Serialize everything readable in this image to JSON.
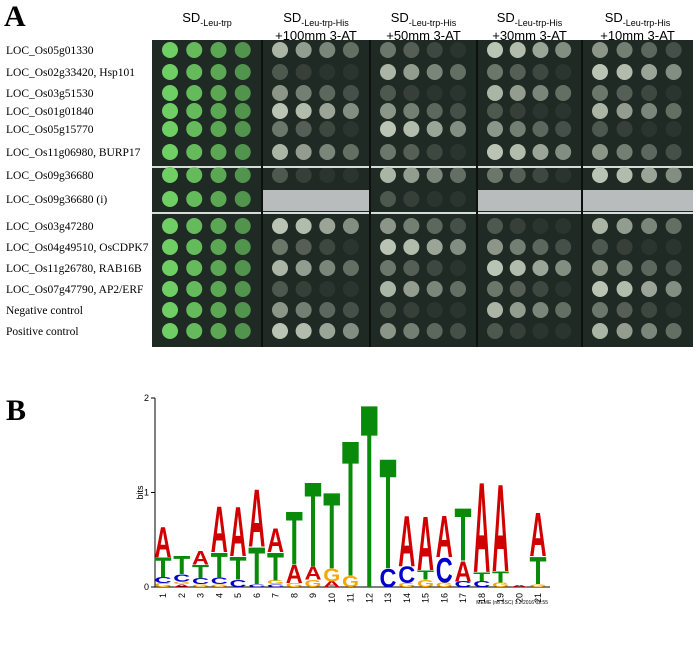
{
  "panel_a": {
    "label": "A",
    "columns": [
      {
        "main": "SD",
        "sub": "-Leu-trp"
      },
      {
        "main": "SD",
        "sub": "-Leu-trp-His",
        "line2": "+100mm 3-AT"
      },
      {
        "main": "SD",
        "sub": "-Leu-trp-His",
        "line2": "+50mm 3-AT"
      },
      {
        "main": "SD",
        "sub": "-Leu-trp-His",
        "line2": "+30mm 3-AT"
      },
      {
        "main": "SD",
        "sub": "-Leu-trp-His",
        "line2": "+10mm 3-AT"
      }
    ],
    "rows": [
      "LOC_Os05g01330",
      "LOC_Os02g33420, Hsp101",
      "LOC_Os03g51530",
      "LOC_Os01g01840",
      "LOC_Os05g15770",
      "LOC_Os11g06980, BURP17",
      "LOC_Os09g36680",
      "LOC_Os09g36680 (i)",
      "LOC_Os03g47280",
      "LOC_Os04g49510, OsCDPK7",
      "LOC_Os11g26780, RAB16B",
      "LOC_Os07g47790, AP2/ERF",
      "Negative control",
      "Positive control"
    ]
  },
  "panel_b": {
    "label": "B",
    "y_axis_label": "bits",
    "ylim": [
      0,
      2
    ],
    "yticks": [
      0,
      1,
      2
    ],
    "footer": "MEME (no SSC) 1.2.2016 02:55",
    "positions": [
      {
        "label": "1",
        "stack": [
          {
            "letter": "G",
            "bits": 0.04
          },
          {
            "letter": "C",
            "bits": 0.06
          },
          {
            "letter": "T",
            "bits": 0.22
          },
          {
            "letter": "A",
            "bits": 0.33
          }
        ]
      },
      {
        "label": "2",
        "stack": [
          {
            "letter": "A",
            "bits": 0.03
          },
          {
            "letter": "G",
            "bits": 0.03
          },
          {
            "letter": "C",
            "bits": 0.08
          },
          {
            "letter": "T",
            "bits": 0.2
          }
        ]
      },
      {
        "label": "3",
        "stack": [
          {
            "letter": "G",
            "bits": 0.03
          },
          {
            "letter": "C",
            "bits": 0.06
          },
          {
            "letter": "T",
            "bits": 0.15
          },
          {
            "letter": "A",
            "bits": 0.15
          }
        ]
      },
      {
        "label": "4",
        "stack": [
          {
            "letter": "G",
            "bits": 0.03
          },
          {
            "letter": "C",
            "bits": 0.07
          },
          {
            "letter": "T",
            "bits": 0.27
          },
          {
            "letter": "A",
            "bits": 0.5
          }
        ]
      },
      {
        "label": "5",
        "stack": [
          {
            "letter": "C",
            "bits": 0.08
          },
          {
            "letter": "T",
            "bits": 0.25
          },
          {
            "letter": "A",
            "bits": 0.54
          }
        ]
      },
      {
        "label": "6",
        "stack": [
          {
            "letter": "C",
            "bits": 0.03
          },
          {
            "letter": "T",
            "bits": 0.4
          },
          {
            "letter": "A",
            "bits": 0.63
          }
        ]
      },
      {
        "label": "7",
        "stack": [
          {
            "letter": "C",
            "bits": 0.03
          },
          {
            "letter": "G",
            "bits": 0.04
          },
          {
            "letter": "T",
            "bits": 0.3
          },
          {
            "letter": "A",
            "bits": 0.26
          }
        ]
      },
      {
        "label": "8",
        "stack": [
          {
            "letter": "G",
            "bits": 0.04
          },
          {
            "letter": "A",
            "bits": 0.2
          },
          {
            "letter": "T",
            "bits": 0.58
          }
        ]
      },
      {
        "label": "9",
        "stack": [
          {
            "letter": "G",
            "bits": 0.08
          },
          {
            "letter": "A",
            "bits": 0.14
          },
          {
            "letter": "T",
            "bits": 0.92
          }
        ]
      },
      {
        "label": "10",
        "stack": [
          {
            "letter": "A",
            "bits": 0.06
          },
          {
            "letter": "G",
            "bits": 0.14
          },
          {
            "letter": "T",
            "bits": 0.83
          }
        ]
      },
      {
        "label": "11",
        "stack": [
          {
            "letter": "G",
            "bits": 0.12
          },
          {
            "letter": "T",
            "bits": 1.48
          }
        ]
      },
      {
        "label": "12",
        "stack": [
          {
            "letter": "T",
            "bits": 2.0
          }
        ]
      },
      {
        "label": "13",
        "stack": [
          {
            "letter": "C",
            "bits": 0.2
          },
          {
            "letter": "T",
            "bits": 1.2
          }
        ]
      },
      {
        "label": "14",
        "stack": [
          {
            "letter": "G",
            "bits": 0.04
          },
          {
            "letter": "C",
            "bits": 0.18
          },
          {
            "letter": "A",
            "bits": 0.55
          }
        ]
      },
      {
        "label": "15",
        "stack": [
          {
            "letter": "G",
            "bits": 0.08
          },
          {
            "letter": "T",
            "bits": 0.1
          },
          {
            "letter": "A",
            "bits": 0.59
          }
        ]
      },
      {
        "label": "16",
        "stack": [
          {
            "letter": "G",
            "bits": 0.05
          },
          {
            "letter": "C",
            "bits": 0.27
          },
          {
            "letter": "A",
            "bits": 0.45
          }
        ]
      },
      {
        "label": "17",
        "stack": [
          {
            "letter": "C",
            "bits": 0.06
          },
          {
            "letter": "A",
            "bits": 0.22
          },
          {
            "letter": "T",
            "bits": 0.57
          }
        ]
      },
      {
        "label": "18",
        "stack": [
          {
            "letter": "C",
            "bits": 0.06
          },
          {
            "letter": "T",
            "bits": 0.1
          },
          {
            "letter": "A",
            "bits": 0.98
          }
        ]
      },
      {
        "label": "19",
        "stack": [
          {
            "letter": "G",
            "bits": 0.05
          },
          {
            "letter": "T",
            "bits": 0.12
          },
          {
            "letter": "A",
            "bits": 0.95
          }
        ]
      },
      {
        "label": "20",
        "stack": [
          {
            "letter": "A",
            "bits": 0.02
          }
        ]
      },
      {
        "label": "21",
        "stack": [
          {
            "letter": "G",
            "bits": 0.03
          },
          {
            "letter": "T",
            "bits": 0.3
          },
          {
            "letter": "A",
            "bits": 0.47
          }
        ]
      }
    ]
  }
}
